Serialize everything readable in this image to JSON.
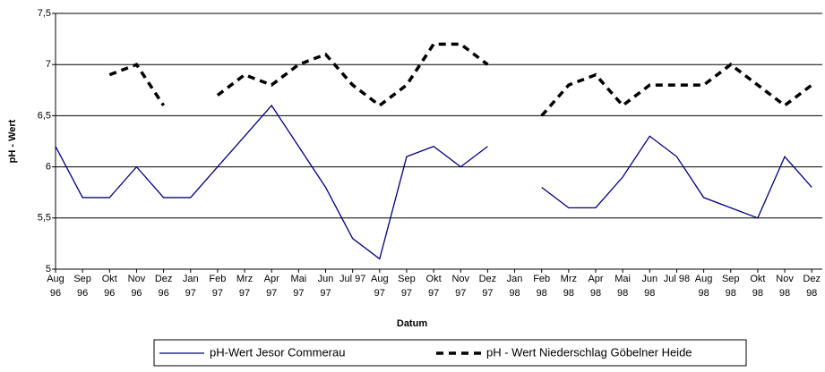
{
  "chart_data": {
    "type": "line",
    "x_label": "Datum",
    "y_label": "pH - Wert",
    "categories": [
      "Aug 96",
      "Sep 96",
      "Okt 96",
      "Nov 96",
      "Dez 96",
      "Jan 97",
      "Feb 97",
      "Mrz 97",
      "Apr 97",
      "Mai 97",
      "Jun 97",
      "Jul 97",
      "Aug 97",
      "Sep 97",
      "Okt 97",
      "Nov 97",
      "Dez 97",
      "Jan 98",
      "Feb 98",
      "Mrz 98",
      "Apr 98",
      "Mai 98",
      "Jun 98",
      "Jul 98",
      "Aug 98",
      "Sep 98",
      "Okt 98",
      "Nov 98",
      "Dez 98"
    ],
    "series": [
      {
        "name": "pH-Wert Jesor Commerau",
        "color": "#000080",
        "dashed": false,
        "values": [
          6.2,
          5.7,
          5.7,
          6.0,
          5.7,
          5.7,
          6.0,
          6.3,
          6.6,
          6.2,
          5.8,
          5.3,
          5.1,
          6.1,
          6.2,
          6.0,
          6.2,
          null,
          5.8,
          5.6,
          5.6,
          5.9,
          6.3,
          6.1,
          5.7,
          5.6,
          5.5,
          6.1,
          5.8
        ]
      },
      {
        "name": "pH - Wert Niederschlag Göbelner Heide",
        "color": "#000000",
        "dashed": true,
        "values": [
          null,
          null,
          6.9,
          7.0,
          6.6,
          null,
          6.7,
          6.9,
          6.8,
          7.0,
          7.1,
          6.8,
          6.6,
          6.8,
          7.2,
          7.2,
          7.0,
          null,
          6.5,
          6.8,
          6.9,
          6.6,
          6.8,
          6.8,
          6.8,
          7.0,
          6.8,
          6.6,
          6.8
        ]
      }
    ],
    "ylim": [
      5,
      7.5
    ],
    "yticks": [
      5,
      {
        "value": 5.5,
        "label": "5,5"
      },
      6,
      {
        "value": 6.5,
        "label": "6,5"
      },
      7,
      {
        "value": 7.5,
        "label": "7,5"
      }
    ],
    "grid": true,
    "legend": "bottom"
  }
}
